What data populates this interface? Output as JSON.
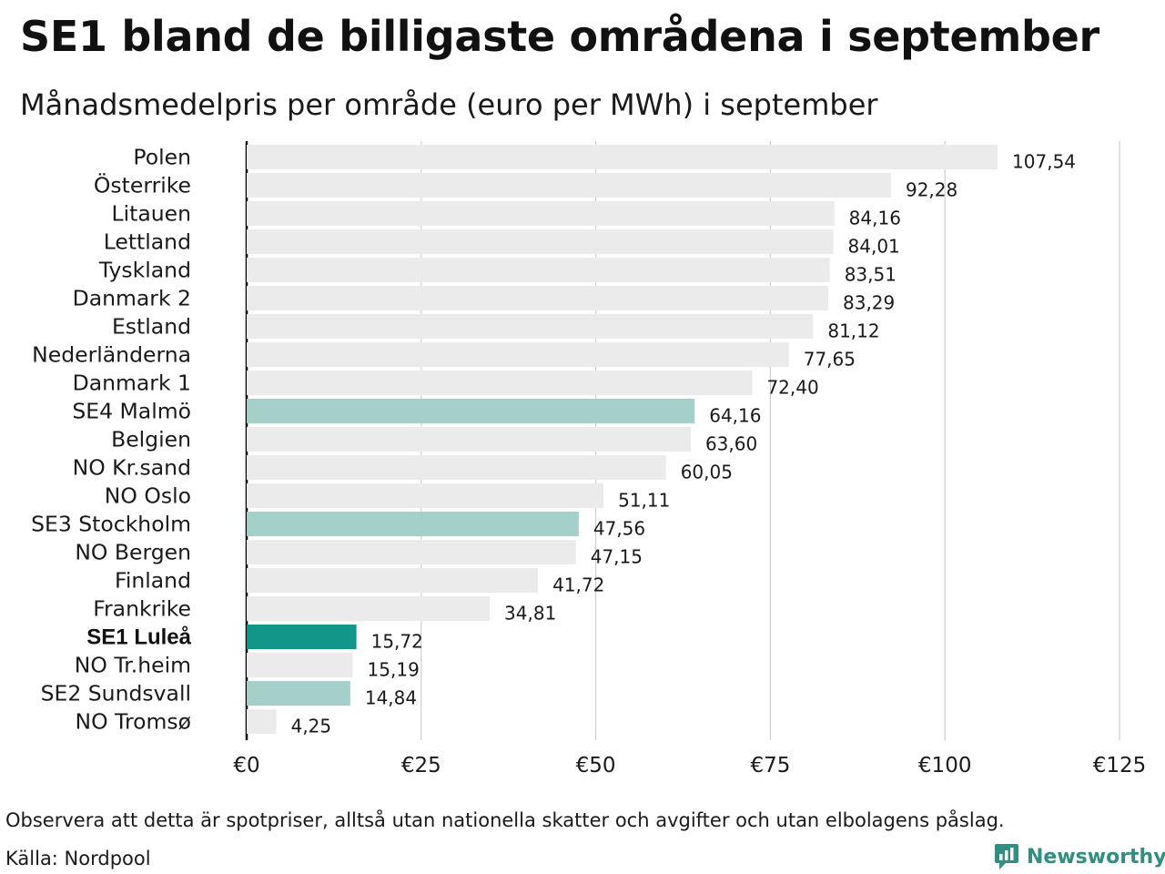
{
  "title": "SE1 bland de billigaste områdena i september",
  "subtitle": "Månadsmedelpris per område (euro per MWh) i september",
  "chart_data": {
    "type": "bar",
    "orientation": "horizontal",
    "categories": [
      "Polen",
      "Österrike",
      "Litauen",
      "Lettland",
      "Tyskland",
      "Danmark  2",
      "Estland",
      "Nederländerna",
      "Danmark  1",
      "SE4  Malmö",
      "Belgien",
      "NO Kr.sand",
      "NO Oslo",
      "SE3  Stockholm",
      "NO Bergen",
      "Finland",
      "Frankrike",
      "SE1 Luleå",
      "NO Tr.heim",
      "SE2  Sundsvall",
      "NO Tromsø"
    ],
    "values": [
      107.54,
      92.28,
      84.16,
      84.01,
      83.51,
      83.29,
      81.12,
      77.65,
      72.4,
      64.16,
      63.6,
      60.05,
      51.11,
      47.56,
      47.15,
      41.72,
      34.81,
      15.72,
      15.19,
      14.84,
      4.25
    ],
    "value_labels": [
      "107,54",
      "92,28",
      "84,16",
      "84,01",
      "83,51",
      "83,29",
      "81,12",
      "77,65",
      "72,40",
      "64,16",
      "63,60",
      "60,05",
      "51,11",
      "47,56",
      "47,15",
      "41,72",
      "34,81",
      "15,72",
      "15,19",
      "14,84",
      "4,25"
    ],
    "groups": [
      "other",
      "other",
      "other",
      "other",
      "other",
      "other",
      "other",
      "other",
      "other",
      "sweden",
      "other",
      "other",
      "other",
      "sweden",
      "other",
      "other",
      "other",
      "highlight",
      "other",
      "sweden",
      "other"
    ],
    "colors": {
      "other": "#ebebeb",
      "sweden": "#a5cfc9",
      "highlight": "#13968a"
    },
    "xlim": [
      0,
      125
    ],
    "xticks": [
      0,
      25,
      50,
      75,
      100,
      125
    ],
    "xtick_labels": [
      "€0",
      "€25",
      "€50",
      "€75",
      "€100",
      "€125"
    ],
    "grid": true,
    "xlabel": "",
    "ylabel": ""
  },
  "footer": {
    "note": "Observera att detta är spotpriser, alltså utan nationella skatter och avgifter och utan elbolagens påslag.",
    "source": "Källa: Nordpool",
    "brand": "Newsworthy",
    "brand_icon": "newsworthy-logo-icon"
  }
}
